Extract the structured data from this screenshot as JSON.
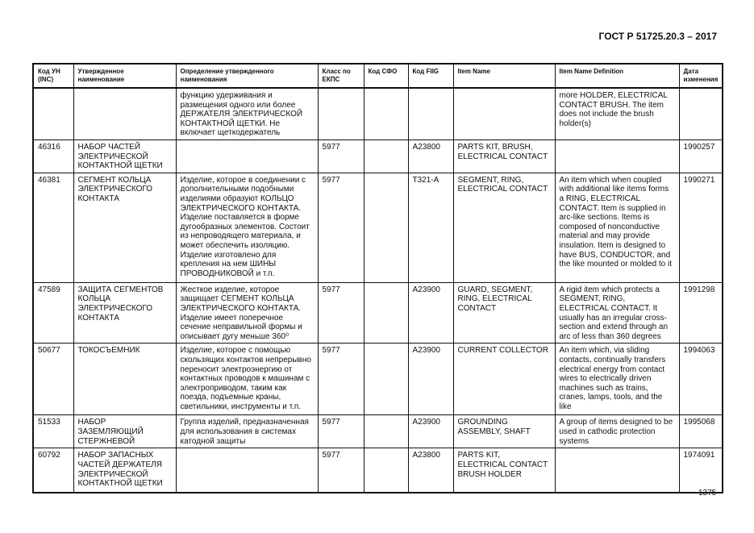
{
  "header": {
    "doc_title": "ГОСТ Р 51725.20.3 – 2017"
  },
  "footer": {
    "page_number": "1375"
  },
  "table": {
    "columns": [
      "Код УН\n(INC)",
      "Утвержденное\nнаименование",
      "Определение утвержденного\nнаименования",
      "Класс по\nЕКПС",
      "Код СФО",
      "Код FIIG",
      "Item Name",
      "Item Name Definition",
      "Дата\nизменения"
    ],
    "rows": [
      [
        "",
        "",
        "функцию удерживания и\nразмещения одного или более\nДЕРЖАТЕЛЯ ЭЛЕКТРИЧЕСКОЙ\nКОНТАКТНОЙ ЩЕТКИ. Не\nвключает щеткодержатель",
        "",
        "",
        "",
        "",
        "more HOLDER, ELECTRICAL\nCONTACT BRUSH. The item\ndoes not include the brush\nholder(s)",
        ""
      ],
      [
        "46316",
        "НАБОР ЧАСТЕЙ\nЭЛЕКТРИЧЕСКОЙ\nКОНТАКТНОЙ ЩЕТКИ",
        "",
        "5977",
        "",
        "A23800",
        "PARTS KIT, BRUSH,\nELECTRICAL CONTACT",
        "",
        "1990257"
      ],
      [
        "46381",
        "СЕГМЕНТ КОЛЬЦА\nЭЛЕКТРИЧЕСКОГО\nКОНТАКТА",
        "Изделие, которое в соединении с\nдополнительными подобными\nизделиями образуют КОЛЬЦО\nЭЛЕКТРИЧЕСКОГО КОНТАКТА.\nИзделие поставляется в форме\nдугообразных элементов. Состоит\nиз непроводящего материала, и\nможет обеспечить изоляцию.\nИзделие изготовлено для\nкрепления на нем ШИНЫ\nПРОВОДНИКОВОЙ и т.п.",
        "5977",
        "",
        "T321-A",
        "SEGMENT, RING,\nELECTRICAL CONTACT",
        "An item which when coupled\nwith additional like items forms\na RING, ELECTRICAL\nCONTACT.  Item is supplied in\narc-like sections.  Items is\ncomposed of nonconductive\nmaterial and may provide\ninsulation.  Item is designed to\nhave BUS, CONDUCTOR, and\nthe like mounted or molded to it",
        "1990271"
      ],
      [
        "47589",
        "ЗАЩИТА СЕГМЕНТОВ\nКОЛЬЦА\nЭЛЕКТРИЧЕСКОГО\nКОНТАКТА",
        "Жесткое изделие, которое\nзащищает СЕГМЕНТ КОЛЬЦА\nЭЛЕКТРИЧЕСКОГО КОНТАКТА.\nИзделие имеет поперечное\nсечение неправильной формы и\nописывает дугу меньше 360⁰",
        "5977",
        "",
        "A23900",
        "GUARD, SEGMENT,\nRING, ELECTRICAL\nCONTACT",
        "A rigid item which protects a\nSEGMENT, RING,\nELECTRICAL CONTACT. It\nusually has an irregular cross-\nsection and extend through an\narc of less than 360 degrees",
        "1991298"
      ],
      [
        "50677",
        "ТОКОСЪЕМНИК",
        "Изделие, которое с помощью\nскользящих контактов непрерывно\nпереносит электроэнергию от\nконтактных проводов к машинам с\nэлектроприводом, таким как\nпоезда, подъемные краны,\nсветильники, инструменты и т.п.",
        "5977",
        "",
        "A23900",
        "CURRENT COLLECTOR",
        "An item which, via sliding\ncontacts, continually transfers\nelectrical energy from contact\nwires to electrically driven\nmachines such as trains,\ncranes, lamps, tools, and the\nlike",
        "1994063"
      ],
      [
        "51533",
        "НАБОР\nЗАЗЕМЛЯЮЩИЙ\nСТЕРЖНЕВОЙ",
        "Группа изделий, предназначенная\nдля использования в системах\nкатодной защиты",
        "5977",
        "",
        "A23900",
        "GROUNDING\nASSEMBLY, SHAFT",
        "A group of items designed to be\nused in cathodic protection\nsystems",
        "1995068"
      ],
      [
        "60792",
        "НАБОР ЗАПАСНЫХ\nЧАСТЕЙ ДЕРЖАТЕЛЯ\nЭЛЕКТРИЧЕСКОЙ\nКОНТАКТНОЙ ЩЕТКИ",
        "",
        "5977",
        "",
        "A23800",
        "PARTS KIT,\nELECTRICAL CONTACT\nBRUSH HOLDER",
        "",
        "1974091"
      ]
    ]
  }
}
